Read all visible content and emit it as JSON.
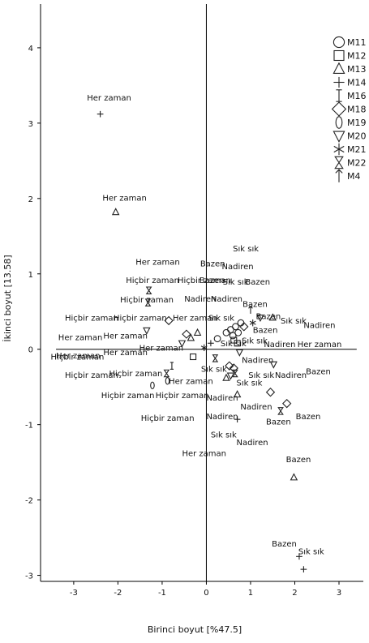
{
  "chart_data": {
    "type": "scatter",
    "title": "",
    "xlabel": "Birinci boyut [%47.5]",
    "ylabel": "İkinci boyut [13.58]",
    "xlim": [
      -3.75,
      3.55
    ],
    "ylim": [
      -3.08,
      4.58
    ],
    "x_ticks": [
      "-3",
      "-2",
      "-1",
      "0",
      "1",
      "2",
      "3"
    ],
    "y_ticks": [
      "4",
      "3",
      "2",
      "1",
      "0",
      "-1",
      "-2",
      "-3"
    ],
    "grid": false,
    "legend_position": "top-right",
    "legend": [
      {
        "name": "M11",
        "marker": "circle"
      },
      {
        "name": "M12",
        "marker": "square"
      },
      {
        "name": "M13",
        "marker": "triangle-up"
      },
      {
        "name": "M14",
        "marker": "plus"
      },
      {
        "name": "M16",
        "marker": "ibeam"
      },
      {
        "name": "M18",
        "marker": "diamond"
      },
      {
        "name": "M19",
        "marker": "zero"
      },
      {
        "name": "M20",
        "marker": "triangle-down"
      },
      {
        "name": "M21",
        "marker": "star"
      },
      {
        "name": "M22",
        "marker": "hourglass"
      },
      {
        "name": "M4",
        "marker": "arrow-up"
      }
    ],
    "points": [
      {
        "x": -2.4,
        "y": 3.12,
        "marker": "plus"
      },
      {
        "x": -2.05,
        "y": 1.82,
        "marker": "triangle-up"
      },
      {
        "x": -1.3,
        "y": 0.78,
        "marker": "hourglass"
      },
      {
        "x": -1.32,
        "y": 0.62,
        "marker": "hourglass"
      },
      {
        "x": -0.85,
        "y": 0.38,
        "marker": "diamond"
      },
      {
        "x": -1.35,
        "y": 0.25,
        "marker": "triangle-down"
      },
      {
        "x": -0.45,
        "y": 0.2,
        "marker": "diamond"
      },
      {
        "x": -0.55,
        "y": 0.08,
        "marker": "triangle-down"
      },
      {
        "x": -0.35,
        "y": 0.15,
        "marker": "triangle-up"
      },
      {
        "x": -0.2,
        "y": 0.22,
        "marker": "triangle-up"
      },
      {
        "x": -0.05,
        "y": 0.02,
        "marker": "star"
      },
      {
        "x": 0.1,
        "y": 0.08,
        "marker": "plus"
      },
      {
        "x": -0.3,
        "y": -0.1,
        "marker": "square"
      },
      {
        "x": -0.78,
        "y": -0.22,
        "marker": "ibeam"
      },
      {
        "x": -0.9,
        "y": -0.32,
        "marker": "hourglass"
      },
      {
        "x": -0.88,
        "y": -0.42,
        "marker": "zero"
      },
      {
        "x": -1.22,
        "y": -0.48,
        "marker": "zero"
      },
      {
        "x": 0.2,
        "y": -0.12,
        "marker": "hourglass"
      },
      {
        "x": 0.25,
        "y": 0.14,
        "marker": "circle"
      },
      {
        "x": 0.45,
        "y": 0.22,
        "marker": "circle"
      },
      {
        "x": 0.55,
        "y": 0.26,
        "marker": "circle"
      },
      {
        "x": 0.6,
        "y": 0.18,
        "marker": "circle"
      },
      {
        "x": 0.66,
        "y": 0.3,
        "marker": "circle"
      },
      {
        "x": 0.72,
        "y": 0.22,
        "marker": "circle"
      },
      {
        "x": 0.78,
        "y": 0.35,
        "marker": "circle"
      },
      {
        "x": 0.62,
        "y": 0.12,
        "marker": "square"
      },
      {
        "x": 0.7,
        "y": 0.08,
        "marker": "square"
      },
      {
        "x": 0.85,
        "y": 0.3,
        "marker": "diamond"
      },
      {
        "x": 1.0,
        "y": 0.52,
        "marker": "arrow-up"
      },
      {
        "x": 1.05,
        "y": 0.35,
        "marker": "star"
      },
      {
        "x": 1.22,
        "y": 0.42,
        "marker": "triangle-down"
      },
      {
        "x": 1.5,
        "y": 0.42,
        "marker": "triangle-up"
      },
      {
        "x": 0.75,
        "y": -0.04,
        "marker": "triangle-down"
      },
      {
        "x": 0.52,
        "y": -0.22,
        "marker": "diamond"
      },
      {
        "x": 0.62,
        "y": -0.25,
        "marker": "diamond"
      },
      {
        "x": 0.55,
        "y": -0.35,
        "marker": "triangle-down"
      },
      {
        "x": 0.65,
        "y": -0.32,
        "marker": "hourglass"
      },
      {
        "x": 0.45,
        "y": -0.38,
        "marker": "triangle-up"
      },
      {
        "x": 1.52,
        "y": -0.2,
        "marker": "triangle-down"
      },
      {
        "x": 1.45,
        "y": -0.57,
        "marker": "diamond"
      },
      {
        "x": 1.68,
        "y": -0.82,
        "marker": "hourglass"
      },
      {
        "x": 1.82,
        "y": -0.72,
        "marker": "diamond"
      },
      {
        "x": 0.7,
        "y": -0.6,
        "marker": "triangle-up"
      },
      {
        "x": 0.7,
        "y": -0.93,
        "marker": "plus"
      },
      {
        "x": 1.98,
        "y": -1.7,
        "marker": "triangle-up"
      },
      {
        "x": 2.1,
        "y": -2.75,
        "marker": "plus"
      },
      {
        "x": 2.2,
        "y": -2.92,
        "marker": "plus"
      }
    ],
    "annotations": [
      {
        "text": "Her zaman",
        "x": -2.7,
        "y": 3.3
      },
      {
        "text": "Her zaman",
        "x": -2.35,
        "y": 1.97
      },
      {
        "text": "Her zaman",
        "x": -1.6,
        "y": 1.12
      },
      {
        "text": "Hiçbir zaman",
        "x": -1.82,
        "y": 0.88
      },
      {
        "text": "Hiçbir zaman",
        "x": -0.65,
        "y": 0.88
      },
      {
        "text": "Hiçbir zaman",
        "x": -1.95,
        "y": 0.62
      },
      {
        "text": "Hiçbir zaman",
        "x": -3.2,
        "y": 0.38
      },
      {
        "text": "Hiçbir zaman",
        "x": -2.1,
        "y": 0.38
      },
      {
        "text": "Her zaman",
        "x": -0.76,
        "y": 0.38
      },
      {
        "text": "Her zaman",
        "x": -3.35,
        "y": 0.12
      },
      {
        "text": "Her zaman",
        "x": -2.33,
        "y": 0.14
      },
      {
        "text": "Her zaman",
        "x": -3.4,
        "y": -0.12
      },
      {
        "text": "Her zaman",
        "x": -2.33,
        "y": -0.08
      },
      {
        "text": "Her zaman",
        "x": -1.52,
        "y": -0.02
      },
      {
        "text": "Hiçbir zaman",
        "x": -3.52,
        "y": -0.14
      },
      {
        "text": "Hiçbir zaman",
        "x": -3.2,
        "y": -0.38
      },
      {
        "text": "Hiçbir zaman",
        "x": -2.2,
        "y": -0.36
      },
      {
        "text": "Hiçbir zaman",
        "x": -2.38,
        "y": -0.65
      },
      {
        "text": "Hiçbir zaman",
        "x": -1.15,
        "y": -0.65
      },
      {
        "text": "Her zaman",
        "x": -0.85,
        "y": -0.46
      },
      {
        "text": "Hiçbir zaman",
        "x": -1.48,
        "y": -0.95
      },
      {
        "text": "Her zaman",
        "x": -0.55,
        "y": -1.42
      },
      {
        "text": "Sık sık",
        "x": 0.6,
        "y": 1.3
      },
      {
        "text": "Bazen",
        "x": -0.14,
        "y": 1.1
      },
      {
        "text": "Nadiren",
        "x": 0.35,
        "y": 1.06
      },
      {
        "text": "Bazen",
        "x": -0.16,
        "y": 0.88
      },
      {
        "text": "Sık sık",
        "x": 0.37,
        "y": 0.86
      },
      {
        "text": "Bazen",
        "x": 0.88,
        "y": 0.86
      },
      {
        "text": "Nadiren",
        "x": -0.5,
        "y": 0.63
      },
      {
        "text": "Nadiren",
        "x": 0.1,
        "y": 0.63
      },
      {
        "text": "Bazen",
        "x": 0.82,
        "y": 0.56
      },
      {
        "text": "Sık sık",
        "x": 0.05,
        "y": 0.38
      },
      {
        "text": "Bazen",
        "x": 1.12,
        "y": 0.4
      },
      {
        "text": "Sık sık",
        "x": 1.68,
        "y": 0.34
      },
      {
        "text": "Nadiren",
        "x": 2.2,
        "y": 0.28
      },
      {
        "text": "Bazen",
        "x": 1.05,
        "y": 0.22
      },
      {
        "text": "Sık sık",
        "x": 0.32,
        "y": 0.04
      },
      {
        "text": "Sık sık",
        "x": 0.8,
        "y": 0.08
      },
      {
        "text": "Nadiren",
        "x": 1.3,
        "y": 0.03
      },
      {
        "text": "Her zaman",
        "x": 2.06,
        "y": 0.03
      },
      {
        "text": "Sık sık",
        "x": -0.12,
        "y": -0.3
      },
      {
        "text": "Nadiren",
        "x": 0.8,
        "y": -0.18
      },
      {
        "text": "Sık sık",
        "x": 0.95,
        "y": -0.38
      },
      {
        "text": "Sık sık",
        "x": 0.68,
        "y": -0.48
      },
      {
        "text": "Nadiren",
        "x": 1.55,
        "y": -0.38
      },
      {
        "text": "Bazen",
        "x": 2.25,
        "y": -0.33
      },
      {
        "text": "Nadiren",
        "x": 0.0,
        "y": -0.68
      },
      {
        "text": "Nadiren",
        "x": 0.77,
        "y": -0.8
      },
      {
        "text": "Nadiren",
        "x": 0.0,
        "y": -0.93
      },
      {
        "text": "Bazen",
        "x": 1.35,
        "y": -1.0
      },
      {
        "text": "Bazen",
        "x": 2.02,
        "y": -0.93
      },
      {
        "text": "Sık sık",
        "x": 0.1,
        "y": -1.17
      },
      {
        "text": "Nadiren",
        "x": 0.68,
        "y": -1.27
      },
      {
        "text": "Bazen",
        "x": 1.8,
        "y": -1.5
      },
      {
        "text": "Bazen",
        "x": 1.48,
        "y": -2.62
      },
      {
        "text": "Sık sık",
        "x": 2.08,
        "y": -2.72
      }
    ]
  },
  "colors": {
    "axis": "#000000",
    "marker": "#222222",
    "text": "#111111"
  }
}
